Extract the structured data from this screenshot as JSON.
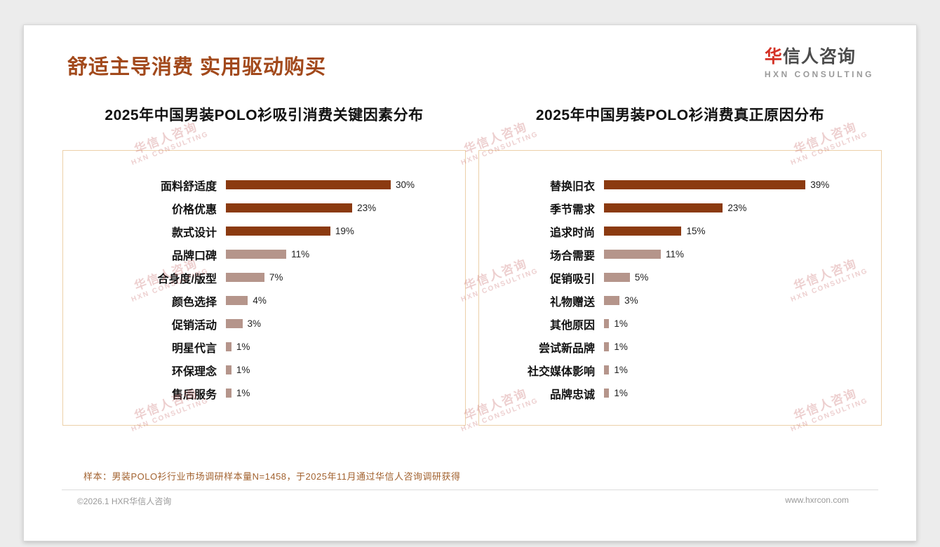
{
  "page": {
    "title": "舒适主导消费 实用驱动购买",
    "logo": {
      "brand_red": "华",
      "brand_rest": "信人咨询",
      "subtitle": "HXN CONSULTING"
    },
    "watermark": {
      "line1": "华信人咨询",
      "line2": "HXN CONSULTING"
    },
    "footnote": "样本：男装POLO衫行业市场调研样本量N=1458，于2025年11月通过华信人咨询调研获得",
    "footer_left": "©2026.1 HXR华信人咨询",
    "footer_right": "www.hxrcon.com"
  },
  "colors": {
    "title": "#a2491b",
    "bar_dark": "#8b3a10",
    "bar_light": "#b5958b",
    "chart_border": "#ecd0a9",
    "footnote": "#a2622f"
  },
  "chart_data": [
    {
      "type": "bar",
      "orientation": "horizontal",
      "title": "2025年中国男装POLO衫吸引消费关键因素分布",
      "categories": [
        "面料舒适度",
        "价格优惠",
        "款式设计",
        "品牌口碑",
        "合身度/版型",
        "颜色选择",
        "促销活动",
        "明星代言",
        "环保理念",
        "售后服务"
      ],
      "values": [
        30,
        23,
        19,
        11,
        7,
        4,
        3,
        1,
        1,
        1
      ],
      "value_suffix": "%",
      "highlight_count": 3,
      "xlim": [
        0,
        42
      ],
      "grid": false,
      "legend": false
    },
    {
      "type": "bar",
      "orientation": "horizontal",
      "title": "2025年中国男装POLO衫消费真正原因分布",
      "categories": [
        "替换旧衣",
        "季节需求",
        "追求时尚",
        "场合需要",
        "促销吸引",
        "礼物赠送",
        "其他原因",
        "尝试新品牌",
        "社交媒体影响",
        "品牌忠诚"
      ],
      "values": [
        39,
        23,
        15,
        11,
        5,
        3,
        1,
        1,
        1,
        1
      ],
      "value_suffix": "%",
      "highlight_count": 3,
      "xlim": [
        0,
        52
      ],
      "grid": false,
      "legend": false
    }
  ]
}
